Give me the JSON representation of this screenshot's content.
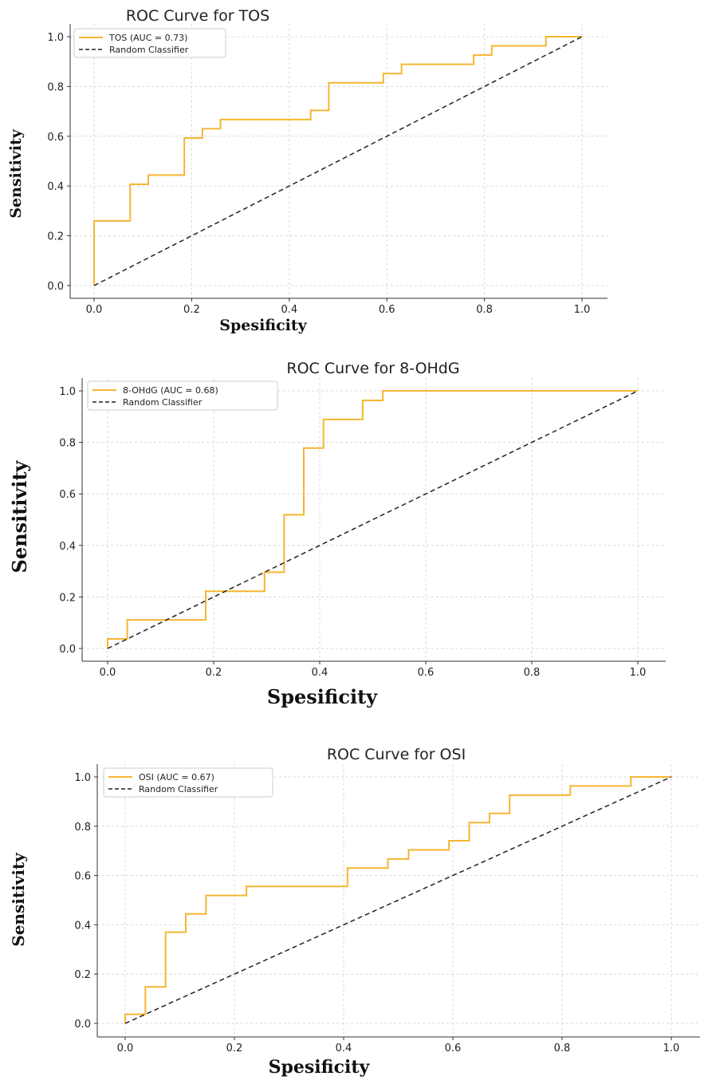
{
  "chart_data": [
    {
      "type": "line",
      "title": "ROC Curve for TOS",
      "xlabel": "Spesificity",
      "ylabel": "Sensitivity",
      "xlim": [
        0.0,
        1.0
      ],
      "ylim": [
        0.0,
        1.0
      ],
      "xticks": [
        "0.0",
        "0.2",
        "0.4",
        "0.6",
        "0.8",
        "1.0"
      ],
      "yticks": [
        "0.0",
        "0.2",
        "0.4",
        "0.6",
        "0.8",
        "1.0"
      ],
      "grid": true,
      "legend_position": "top-left",
      "series": [
        {
          "name": "TOS (AUC = 0.73)",
          "color": "#f5b631",
          "style": "solid-step",
          "points": [
            [
              0,
              0
            ],
            [
              0,
              0.26
            ],
            [
              0.074,
              0.26
            ],
            [
              0.074,
              0.407
            ],
            [
              0.111,
              0.407
            ],
            [
              0.111,
              0.444
            ],
            [
              0.185,
              0.444
            ],
            [
              0.185,
              0.593
            ],
            [
              0.222,
              0.593
            ],
            [
              0.222,
              0.63
            ],
            [
              0.259,
              0.63
            ],
            [
              0.259,
              0.667
            ],
            [
              0.444,
              0.667
            ],
            [
              0.444,
              0.704
            ],
            [
              0.481,
              0.704
            ],
            [
              0.481,
              0.815
            ],
            [
              0.593,
              0.815
            ],
            [
              0.593,
              0.852
            ],
            [
              0.63,
              0.852
            ],
            [
              0.63,
              0.889
            ],
            [
              0.778,
              0.889
            ],
            [
              0.778,
              0.926
            ],
            [
              0.815,
              0.926
            ],
            [
              0.815,
              0.963
            ],
            [
              0.926,
              0.963
            ],
            [
              0.926,
              1.0
            ],
            [
              1.0,
              1.0
            ]
          ]
        },
        {
          "name": "Random Classifier",
          "color": "#222222",
          "style": "dashed",
          "points": [
            [
              0,
              0
            ],
            [
              1,
              1
            ]
          ]
        }
      ]
    },
    {
      "type": "line",
      "title": "ROC Curve for 8-OHdG",
      "xlabel": "Spesificity",
      "ylabel": "Sensitivity",
      "xlim": [
        0.0,
        1.0
      ],
      "ylim": [
        0.0,
        1.0
      ],
      "xticks": [
        "0.0",
        "0.2",
        "0.4",
        "0.6",
        "0.8",
        "1.0"
      ],
      "yticks": [
        "0.0",
        "0.2",
        "0.4",
        "0.6",
        "0.8",
        "1.0"
      ],
      "grid": true,
      "legend_position": "top-left",
      "series": [
        {
          "name": "8-OHdG (AUC = 0.68)",
          "color": "#f5b631",
          "style": "solid-step",
          "points": [
            [
              0,
              0
            ],
            [
              0,
              0.037
            ],
            [
              0.037,
              0.037
            ],
            [
              0.037,
              0.111
            ],
            [
              0.185,
              0.111
            ],
            [
              0.185,
              0.222
            ],
            [
              0.296,
              0.222
            ],
            [
              0.296,
              0.296
            ],
            [
              0.333,
              0.296
            ],
            [
              0.333,
              0.519
            ],
            [
              0.37,
              0.519
            ],
            [
              0.37,
              0.778
            ],
            [
              0.407,
              0.778
            ],
            [
              0.407,
              0.889
            ],
            [
              0.481,
              0.889
            ],
            [
              0.481,
              0.963
            ],
            [
              0.519,
              0.963
            ],
            [
              0.519,
              1.0
            ],
            [
              1.0,
              1.0
            ]
          ]
        },
        {
          "name": "Random Classifier",
          "color": "#222222",
          "style": "dashed",
          "points": [
            [
              0,
              0
            ],
            [
              1,
              1
            ]
          ]
        }
      ]
    },
    {
      "type": "line",
      "title": "ROC Curve for OSI",
      "xlabel": "Spesificity",
      "ylabel": "Sensitivity",
      "xlim": [
        0.0,
        1.0
      ],
      "ylim": [
        0.0,
        1.0
      ],
      "xticks": [
        "0.0",
        "0.2",
        "0.4",
        "0.6",
        "0.8",
        "1.0"
      ],
      "yticks": [
        "0.0",
        "0.2",
        "0.4",
        "0.6",
        "0.8",
        "1.0"
      ],
      "grid": true,
      "legend_position": "top-left",
      "series": [
        {
          "name": "OSI (AUC = 0.67)",
          "color": "#f5b631",
          "style": "solid-step",
          "points": [
            [
              0,
              0
            ],
            [
              0,
              0.037
            ],
            [
              0.037,
              0.037
            ],
            [
              0.037,
              0.148
            ],
            [
              0.074,
              0.148
            ],
            [
              0.074,
              0.37
            ],
            [
              0.111,
              0.37
            ],
            [
              0.111,
              0.444
            ],
            [
              0.148,
              0.444
            ],
            [
              0.148,
              0.519
            ],
            [
              0.222,
              0.519
            ],
            [
              0.222,
              0.556
            ],
            [
              0.407,
              0.556
            ],
            [
              0.407,
              0.63
            ],
            [
              0.481,
              0.63
            ],
            [
              0.481,
              0.667
            ],
            [
              0.519,
              0.667
            ],
            [
              0.519,
              0.704
            ],
            [
              0.593,
              0.704
            ],
            [
              0.593,
              0.741
            ],
            [
              0.63,
              0.741
            ],
            [
              0.63,
              0.815
            ],
            [
              0.667,
              0.815
            ],
            [
              0.667,
              0.852
            ],
            [
              0.704,
              0.852
            ],
            [
              0.704,
              0.926
            ],
            [
              0.815,
              0.926
            ],
            [
              0.815,
              0.963
            ],
            [
              0.926,
              0.963
            ],
            [
              0.926,
              1.0
            ],
            [
              1.0,
              1.0
            ]
          ]
        },
        {
          "name": "Random Classifier",
          "color": "#222222",
          "style": "dashed",
          "points": [
            [
              0,
              0
            ],
            [
              1,
              1
            ]
          ]
        }
      ]
    }
  ]
}
